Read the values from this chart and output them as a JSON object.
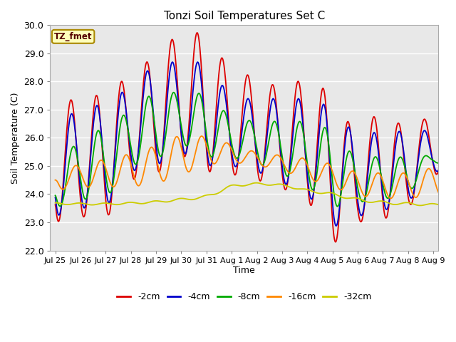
{
  "title": "Tonzi Soil Temperatures Set C",
  "xlabel": "Time",
  "ylabel": "Soil Temperature (C)",
  "ylim": [
    22.0,
    30.0
  ],
  "yticks": [
    22.0,
    23.0,
    24.0,
    25.0,
    26.0,
    27.0,
    28.0,
    29.0,
    30.0
  ],
  "xtick_labels": [
    "Jul 25",
    "Jul 26",
    "Jul 27",
    "Jul 28",
    "Jul 29",
    "Jul 30",
    "Jul 31",
    "Aug 1",
    "Aug 2",
    "Aug 3",
    "Aug 4",
    "Aug 5",
    "Aug 6",
    "Aug 7",
    "Aug 8",
    "Aug 9"
  ],
  "series_colors": {
    "-2cm": "#dd0000",
    "-4cm": "#0000cc",
    "-8cm": "#00aa00",
    "-16cm": "#ff8800",
    "-32cm": "#cccc00"
  },
  "series_labels": [
    "-2cm",
    "-4cm",
    "-8cm",
    "-16cm",
    "-32cm"
  ],
  "annotation_text": "TZ_fmet",
  "annotation_bg": "#ffffbb",
  "annotation_border": "#aa8800",
  "plot_bg": "#e8e8e8",
  "fig_bg": "#ffffff",
  "linewidth": 1.3
}
